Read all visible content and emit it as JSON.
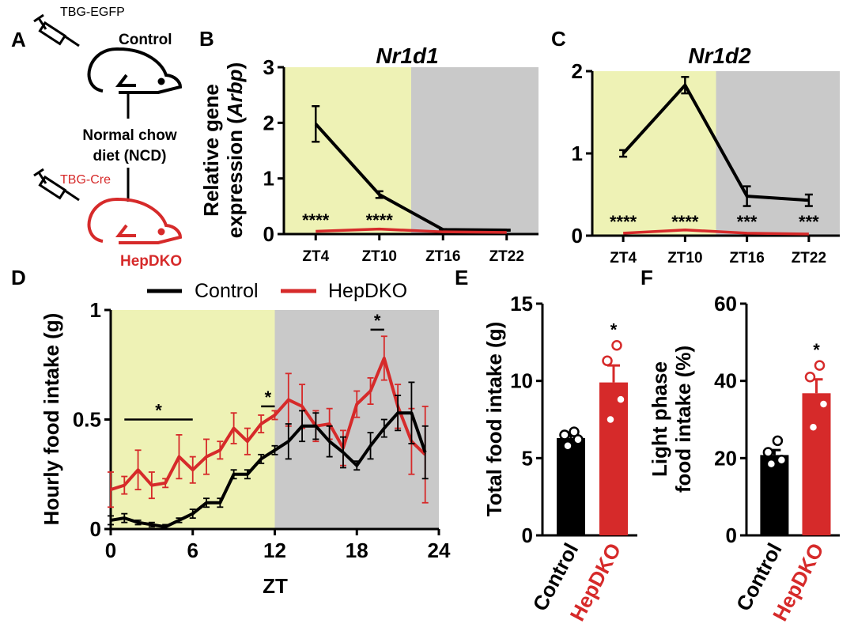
{
  "panels": {
    "A": {
      "letter": "A",
      "top_vector": "TBG-EGFP",
      "top_group": "Control",
      "diet_line1": "Normal chow",
      "diet_line2": "diet (NCD)",
      "bottom_vector": "TBG-Cre",
      "bottom_group": "HepDKO"
    },
    "B": {
      "letter": "B"
    },
    "C": {
      "letter": "C"
    },
    "D": {
      "letter": "D"
    },
    "E": {
      "letter": "E"
    },
    "F": {
      "letter": "F"
    }
  },
  "legend": {
    "control": "Control",
    "hepdko": "HepDKO"
  },
  "colors": {
    "control": "#000000",
    "hepdko": "#d62a2a",
    "light_phase": "#eef2b5",
    "dark_phase": "#c9c9c9"
  },
  "chart_data": [
    {
      "id": "B",
      "type": "line",
      "title": "Nr1d1",
      "ylabel_line1": "Relative gene",
      "ylabel_line2": "expression (",
      "ylabel_italic": "Arbp",
      "ylabel_close": ")",
      "categories": [
        "ZT4",
        "ZT10",
        "ZT16",
        "ZT22"
      ],
      "yticks": [
        "0",
        "1",
        "2",
        "3"
      ],
      "ylim": [
        0,
        3
      ],
      "series": [
        {
          "name": "Control",
          "values": [
            1.98,
            0.71,
            0.08,
            0.07
          ],
          "errors": [
            0.32,
            0.06,
            0.01,
            0.01
          ]
        },
        {
          "name": "HepDKO",
          "values": [
            0.05,
            0.09,
            0.04,
            0.03
          ],
          "errors": [
            0,
            0,
            0,
            0
          ]
        }
      ],
      "significance": [
        "****",
        "****",
        "",
        ""
      ]
    },
    {
      "id": "C",
      "type": "line",
      "title": "Nr1d2",
      "categories": [
        "ZT4",
        "ZT10",
        "ZT16",
        "ZT22"
      ],
      "yticks": [
        "0",
        "1",
        "2"
      ],
      "ylim": [
        0,
        2
      ],
      "series": [
        {
          "name": "Control",
          "values": [
            1.0,
            1.83,
            0.48,
            0.43
          ],
          "errors": [
            0.04,
            0.1,
            0.12,
            0.07
          ]
        },
        {
          "name": "HepDKO",
          "values": [
            0.03,
            0.07,
            0.03,
            0.02
          ],
          "errors": [
            0,
            0,
            0,
            0
          ]
        }
      ],
      "significance": [
        "****",
        "****",
        "***",
        "***"
      ]
    },
    {
      "id": "D",
      "type": "line",
      "ylabel": "Hourly food intake (g)",
      "xlabel": "ZT",
      "xticks": [
        "0",
        "6",
        "12",
        "18",
        "24"
      ],
      "yticks": [
        "0",
        "0.5",
        "1"
      ],
      "xlim": [
        0,
        24
      ],
      "ylim": [
        0,
        1
      ],
      "x": [
        0,
        1,
        2,
        3,
        4,
        5,
        6,
        7,
        8,
        9,
        10,
        11,
        12,
        13,
        14,
        15,
        16,
        17,
        18,
        19,
        20,
        21,
        22,
        23
      ],
      "series": [
        {
          "name": "Control",
          "values": [
            0.04,
            0.05,
            0.03,
            0.02,
            0.01,
            0.04,
            0.07,
            0.12,
            0.12,
            0.25,
            0.25,
            0.32,
            0.36,
            0.4,
            0.47,
            0.47,
            0.4,
            0.35,
            0.29,
            0.38,
            0.46,
            0.53,
            0.53,
            0.35
          ],
          "errors": [
            0.02,
            0.02,
            0.01,
            0.01,
            0.01,
            0.01,
            0.02,
            0.02,
            0.02,
            0.02,
            0.02,
            0.02,
            0.02,
            0.08,
            0.07,
            0.06,
            0.07,
            0.07,
            0.02,
            0.06,
            0.04,
            0.08,
            0.14,
            0.12
          ]
        },
        {
          "name": "HepDKO",
          "values": [
            0.18,
            0.2,
            0.27,
            0.2,
            0.21,
            0.33,
            0.27,
            0.33,
            0.36,
            0.46,
            0.4,
            0.48,
            0.52,
            0.59,
            0.56,
            0.47,
            0.48,
            0.37,
            0.57,
            0.63,
            0.78,
            0.56,
            0.4,
            0.34
          ],
          "errors": [
            0.08,
            0.04,
            0.09,
            0.06,
            0.02,
            0.1,
            0.06,
            0.08,
            0.04,
            0.07,
            0.06,
            0.04,
            0.02,
            0.12,
            0.1,
            0.07,
            0.07,
            0.08,
            0.06,
            0.06,
            0.1,
            0.1,
            0.15,
            0.22
          ]
        }
      ],
      "significance": [
        {
          "label": "*",
          "from": 1,
          "to": 6,
          "y": 0.5
        },
        {
          "label": "*",
          "from": 11,
          "to": 12,
          "y": 0.56
        },
        {
          "label": "*",
          "from": 19,
          "to": 20,
          "y": 0.91
        }
      ]
    },
    {
      "id": "E",
      "type": "bar",
      "ylabel": "Total food intake (g)",
      "categories": [
        "Control",
        "HepDKO"
      ],
      "yticks": [
        "0",
        "5",
        "10",
        "15"
      ],
      "ylim": [
        0,
        15
      ],
      "values": [
        6.3,
        9.9
      ],
      "errors": [
        0.3,
        1.1
      ],
      "points": [
        [
          6.7,
          6.5,
          6.2,
          5.8
        ],
        [
          12.3,
          11.3,
          8.8,
          7.5
        ]
      ],
      "significance": [
        "",
        "*"
      ]
    },
    {
      "id": "F",
      "type": "bar",
      "ylabel_line1": "Light phase",
      "ylabel_line2": "food intake (%)",
      "categories": [
        "Control",
        "HepDKO"
      ],
      "yticks": [
        "0",
        "20",
        "40",
        "60"
      ],
      "ylim": [
        0,
        60
      ],
      "values": [
        20.8,
        36.8
      ],
      "errors": [
        1.3,
        3.6
      ],
      "points": [
        [
          24.5,
          21.5,
          19.5,
          18.5
        ],
        [
          44,
          41,
          34,
          28
        ]
      ],
      "significance": [
        "",
        "*"
      ]
    }
  ]
}
